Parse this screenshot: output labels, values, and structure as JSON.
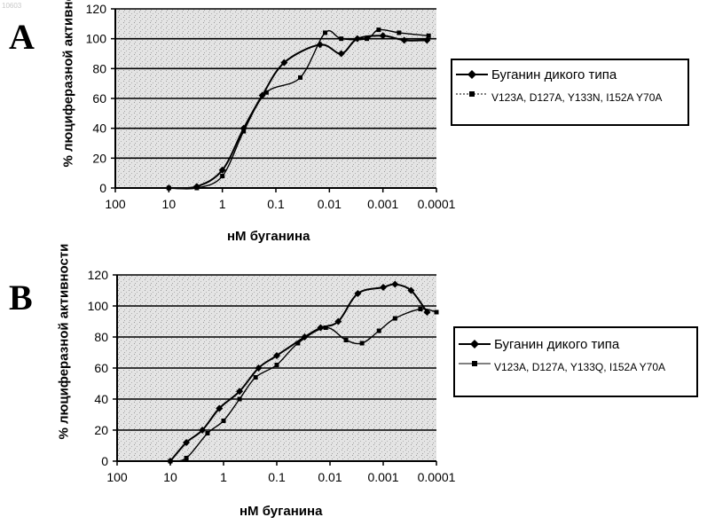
{
  "corner_stamp": "10603",
  "chart_data": [
    {
      "panel_label": "A",
      "type": "line",
      "xlabel": "нМ буганина",
      "ylabel": "% люциферазной активности",
      "x_scale": "log-reversed",
      "xlim": [
        100,
        0.0001
      ],
      "ylim": [
        0,
        120
      ],
      "x_ticks": [
        "100",
        "10",
        "1",
        "0.1",
        "0.01",
        "0.001",
        "0.0001"
      ],
      "y_ticks": [
        "0",
        "20",
        "40",
        "60",
        "80",
        "100",
        "120"
      ],
      "grid": "horizontal",
      "legend_position": "right",
      "series": [
        {
          "name": "Буганин дикого типа",
          "marker": "diamond",
          "points": [
            [
              10,
              0
            ],
            [
              3,
              1
            ],
            [
              1,
              12
            ],
            [
              0.4,
              40
            ],
            [
              0.18,
              62
            ],
            [
              0.07,
              84
            ],
            [
              0.015,
              96
            ],
            [
              0.006,
              90
            ],
            [
              0.003,
              100
            ],
            [
              0.001,
              102
            ],
            [
              0.0004,
              99
            ],
            [
              0.00015,
              99
            ]
          ]
        },
        {
          "name": "V123A, D127A, Y133N, I152A Y70A",
          "marker": "square",
          "points": [
            [
              10,
              0
            ],
            [
              3,
              0
            ],
            [
              1,
              8
            ],
            [
              0.4,
              38
            ],
            [
              0.15,
              64
            ],
            [
              0.035,
              74
            ],
            [
              0.012,
              104
            ],
            [
              0.006,
              100
            ],
            [
              0.002,
              100
            ],
            [
              0.0012,
              106
            ],
            [
              0.0005,
              104
            ],
            [
              0.00014,
              102
            ]
          ]
        }
      ]
    },
    {
      "panel_label": "B",
      "type": "line",
      "xlabel": "нМ буганина",
      "ylabel": "% люциферазной активности",
      "x_scale": "log-reversed",
      "xlim": [
        100,
        0.0001
      ],
      "ylim": [
        0,
        120
      ],
      "x_ticks": [
        "100",
        "10",
        "1",
        "0.1",
        "0.01",
        "0.001",
        "0.0001"
      ],
      "y_ticks": [
        "0",
        "20",
        "40",
        "60",
        "80",
        "100",
        "120"
      ],
      "grid": "horizontal",
      "legend_position": "right",
      "series": [
        {
          "name": "Буганин дикого типа",
          "marker": "diamond",
          "points": [
            [
              10,
              0
            ],
            [
              5,
              12
            ],
            [
              2.5,
              20
            ],
            [
              1.2,
              34
            ],
            [
              0.5,
              45
            ],
            [
              0.22,
              60
            ],
            [
              0.1,
              68
            ],
            [
              0.03,
              80
            ],
            [
              0.015,
              86
            ],
            [
              0.007,
              90
            ],
            [
              0.003,
              108
            ],
            [
              0.001,
              112
            ],
            [
              0.0006,
              114
            ],
            [
              0.0003,
              110
            ],
            [
              0.00015,
              96
            ]
          ]
        },
        {
          "name": "V123A, D127A, Y133Q, I152A Y70A",
          "marker": "square",
          "points": [
            [
              10,
              0
            ],
            [
              5,
              2
            ],
            [
              2,
              18
            ],
            [
              1,
              26
            ],
            [
              0.5,
              40
            ],
            [
              0.25,
              54
            ],
            [
              0.1,
              62
            ],
            [
              0.04,
              76
            ],
            [
              0.012,
              86
            ],
            [
              0.005,
              78
            ],
            [
              0.0025,
              76
            ],
            [
              0.0012,
              84
            ],
            [
              0.0006,
              92
            ],
            [
              0.0002,
              98
            ],
            [
              0.0001,
              96
            ]
          ]
        }
      ]
    }
  ]
}
